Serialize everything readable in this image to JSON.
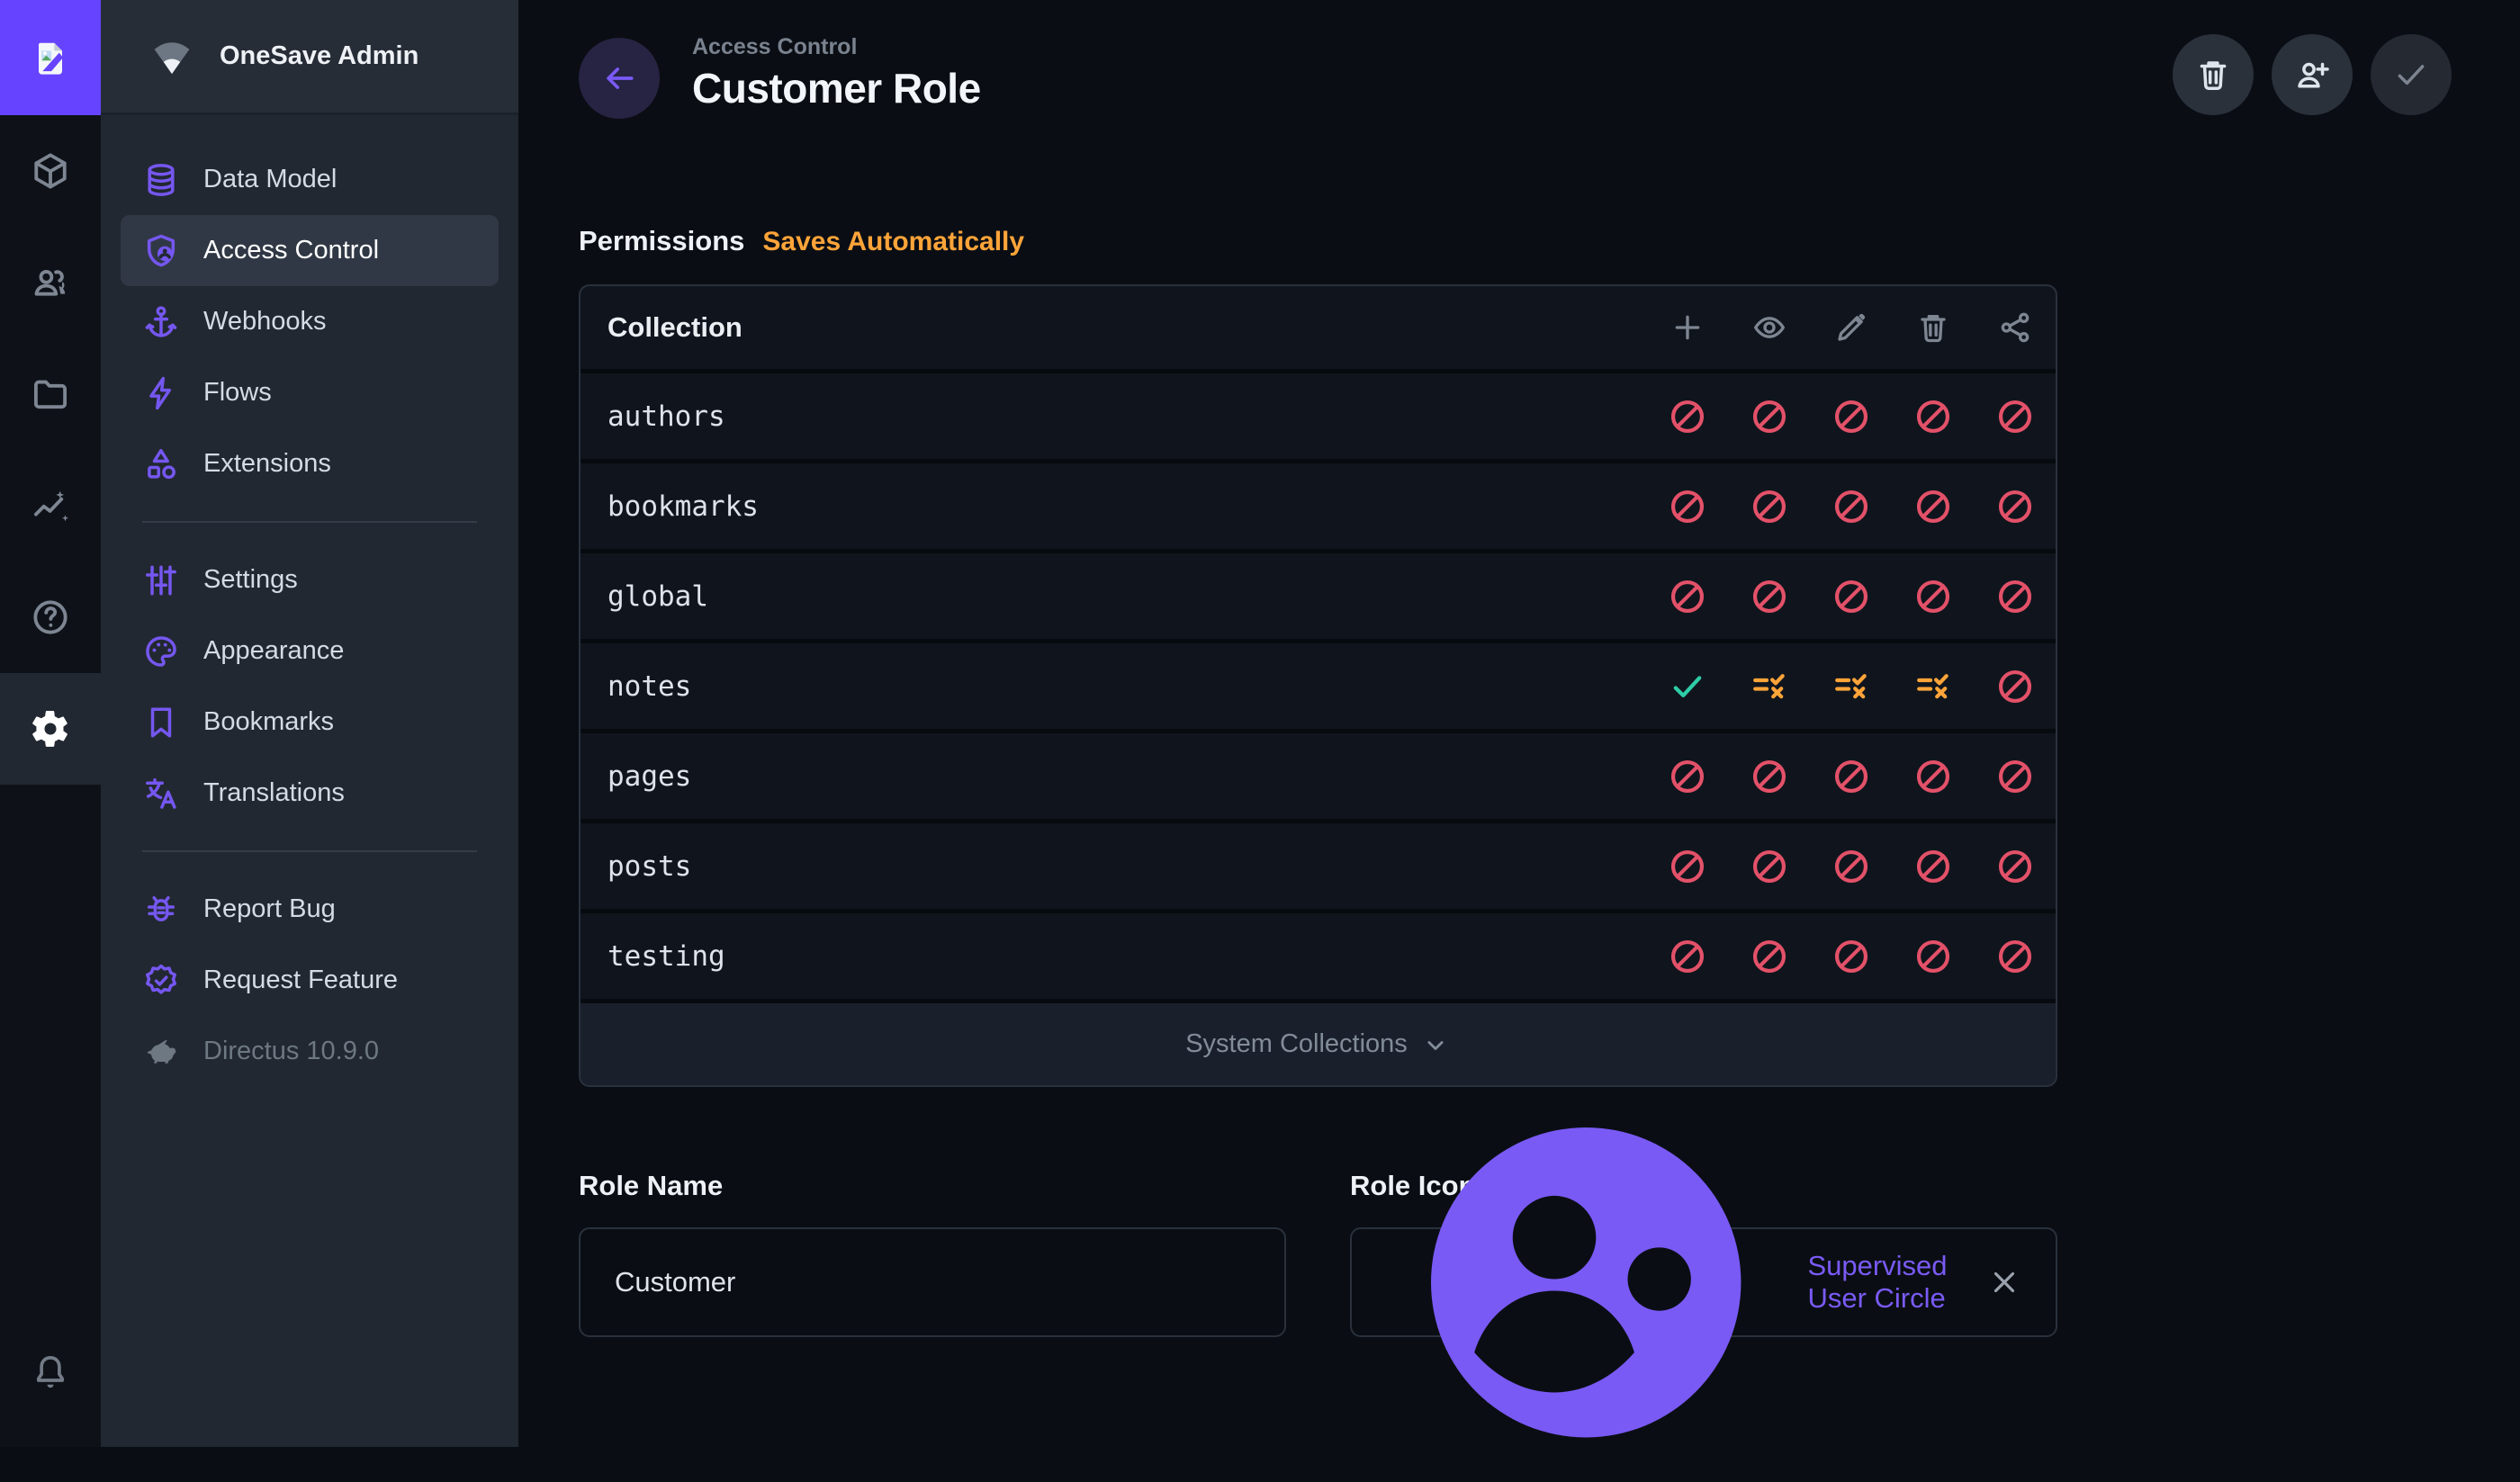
{
  "colors": {
    "accent": "#6644ff",
    "nav_accent": "#7557f0",
    "warning": "#ffa439",
    "success": "#2ecda7",
    "danger": "#e35169"
  },
  "module_bar": {
    "modules": [
      {
        "name": "content-module",
        "icon": "box-icon",
        "active": false
      },
      {
        "name": "users-module",
        "icon": "people-icon",
        "active": false
      },
      {
        "name": "files-module",
        "icon": "folder-icon",
        "active": false
      },
      {
        "name": "insights-module",
        "icon": "insights-icon",
        "active": false
      },
      {
        "name": "docs-module",
        "icon": "help-icon",
        "active": false
      },
      {
        "name": "settings-module",
        "icon": "gear-icon",
        "active": true
      }
    ],
    "notifications": {
      "name": "notifications-button",
      "icon": "bell-icon"
    }
  },
  "project": {
    "name": "OneSave Admin",
    "logo_icon": "broken-image-icon",
    "project_icon": "fan-icon"
  },
  "sidebar": {
    "groups": [
      {
        "items": [
          {
            "label": "Data Model",
            "icon": "database-icon"
          },
          {
            "label": "Access Control",
            "icon": "shield-user-icon",
            "active": true
          },
          {
            "label": "Webhooks",
            "icon": "anchor-icon"
          },
          {
            "label": "Flows",
            "icon": "bolt-icon"
          },
          {
            "label": "Extensions",
            "icon": "shapes-icon"
          }
        ]
      },
      {
        "items": [
          {
            "label": "Settings",
            "icon": "tune-icon"
          },
          {
            "label": "Appearance",
            "icon": "palette-icon"
          },
          {
            "label": "Bookmarks",
            "icon": "bookmark-icon"
          },
          {
            "label": "Translations",
            "icon": "translate-icon"
          }
        ]
      },
      {
        "items": [
          {
            "label": "Report Bug",
            "icon": "bug-icon"
          },
          {
            "label": "Request Feature",
            "icon": "verified-icon"
          },
          {
            "label": "Directus 10.9.0",
            "icon": "rabbit-icon",
            "muted": true
          }
        ]
      }
    ]
  },
  "header": {
    "breadcrumb": "Access Control",
    "title": "Customer Role",
    "back_icon": "arrow-left-icon",
    "actions": [
      {
        "name": "delete-role-button",
        "icon": "trash-icon",
        "disabled": false
      },
      {
        "name": "invite-users-button",
        "icon": "person-add-icon",
        "disabled": false
      },
      {
        "name": "save-button",
        "icon": "check-icon",
        "disabled": true
      }
    ]
  },
  "permissions": {
    "heading": "Permissions",
    "subheading": "Saves Automatically",
    "table": {
      "collection_header": "Collection",
      "action_icons": [
        "plus-icon",
        "eye-icon",
        "pencil-icon",
        "trash-icon",
        "share-icon"
      ],
      "action_names": [
        "create",
        "read",
        "update",
        "delete",
        "share"
      ],
      "states_meta": {
        "block": {
          "icon": "block-icon",
          "color": "#e35169"
        },
        "allow": {
          "icon": "check-icon",
          "color": "#2ecda7"
        },
        "custom": {
          "icon": "rule-icon",
          "color": "#ffa439"
        }
      },
      "rows": [
        {
          "collection": "authors",
          "states": [
            "block",
            "block",
            "block",
            "block",
            "block"
          ]
        },
        {
          "collection": "bookmarks",
          "states": [
            "block",
            "block",
            "block",
            "block",
            "block"
          ]
        },
        {
          "collection": "global",
          "states": [
            "block",
            "block",
            "block",
            "block",
            "block"
          ]
        },
        {
          "collection": "notes",
          "states": [
            "allow",
            "custom",
            "custom",
            "custom",
            "block"
          ]
        },
        {
          "collection": "pages",
          "states": [
            "block",
            "block",
            "block",
            "block",
            "block"
          ]
        },
        {
          "collection": "posts",
          "states": [
            "block",
            "block",
            "block",
            "block",
            "block"
          ]
        },
        {
          "collection": "testing",
          "states": [
            "block",
            "block",
            "block",
            "block",
            "block"
          ]
        }
      ],
      "footer": {
        "label": "System Collections",
        "icon": "chevron-down-icon"
      }
    }
  },
  "fields": {
    "role_name": {
      "label": "Role Name",
      "value": "Customer"
    },
    "role_icon": {
      "label": "Role Icon",
      "value": "Supervised User Circle",
      "icon": "supervised-user-circle-icon",
      "clear_icon": "close-icon"
    }
  }
}
